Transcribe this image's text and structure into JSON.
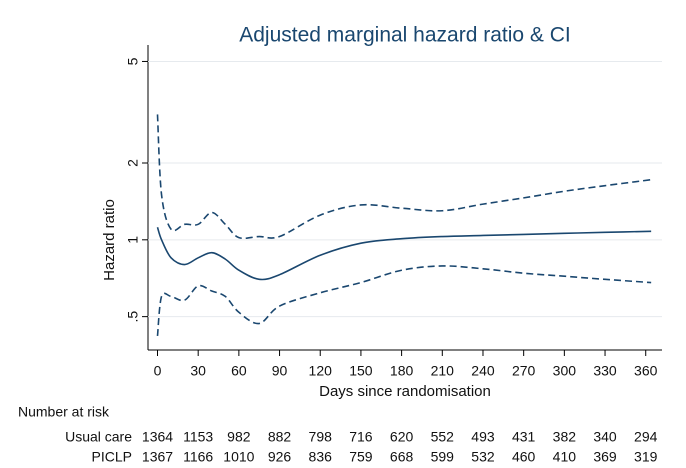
{
  "chart_data": {
    "type": "line",
    "title": "Adjusted marginal hazard ratio & CI",
    "x_label": "Days since randomisation",
    "y_label": "Hazard ratio",
    "x": [
      0,
      3,
      10,
      20,
      30,
      40,
      50,
      60,
      75,
      90,
      120,
      150,
      180,
      210,
      240,
      270,
      300,
      330,
      364
    ],
    "series": [
      {
        "color": "#1a476f",
        "style": "solid",
        "values": [
          1.12,
          1.0,
          0.85,
          0.8,
          0.85,
          0.89,
          0.84,
          0.76,
          0.7,
          0.73,
          0.87,
          0.97,
          1.01,
          1.03,
          1.04,
          1.05,
          1.06,
          1.07,
          1.08
        ]
      },
      {
        "color": "#1a476f",
        "style": "dashed",
        "values": [
          3.1,
          1.5,
          1.1,
          1.15,
          1.15,
          1.28,
          1.15,
          1.02,
          1.03,
          1.03,
          1.25,
          1.37,
          1.33,
          1.3,
          1.38,
          1.46,
          1.55,
          1.63,
          1.72
        ]
      },
      {
        "color": "#1a476f",
        "style": "dashed",
        "values": [
          0.42,
          0.6,
          0.6,
          0.58,
          0.66,
          0.63,
          0.6,
          0.52,
          0.47,
          0.55,
          0.62,
          0.68,
          0.76,
          0.79,
          0.77,
          0.74,
          0.72,
          0.7,
          0.68
        ]
      }
    ],
    "xlim": [
      -7,
      372
    ],
    "xticks": [
      0,
      30,
      60,
      90,
      120,
      150,
      180,
      210,
      240,
      270,
      300,
      330,
      360
    ],
    "ylim": [
      0.37,
      5.8
    ],
    "y_scale": "log",
    "yticks": [
      {
        "value": 0.5,
        "label": ".5"
      },
      1,
      2,
      5
    ],
    "grid": true,
    "risk_table": {
      "title": "Number at risk",
      "rows": [
        {
          "label": "Usual care",
          "values": [
            1364,
            1153,
            982,
            882,
            798,
            716,
            620,
            552,
            493,
            431,
            382,
            340,
            294
          ]
        },
        {
          "label": "PICLP",
          "values": [
            1367,
            1166,
            1010,
            926,
            836,
            759,
            668,
            599,
            532,
            460,
            410,
            369,
            319
          ]
        }
      ]
    }
  }
}
